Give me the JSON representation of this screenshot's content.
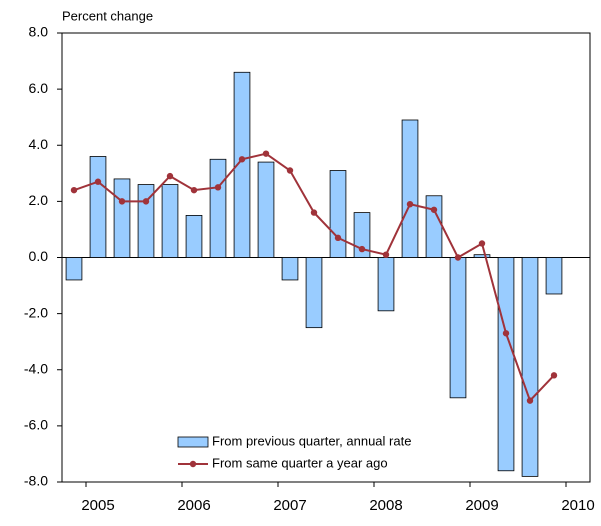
{
  "chart_data": {
    "type": "bar_line",
    "y_label": "Percent change",
    "categories": [
      null,
      "2005",
      null,
      null,
      null,
      "2006",
      null,
      null,
      null,
      "2007",
      null,
      null,
      null,
      "2008",
      null,
      null,
      null,
      "2009",
      null,
      null,
      null,
      "2010"
    ],
    "series": [
      {
        "name": "From previous quarter, annual rate",
        "type": "bar",
        "color": "#99ccff",
        "values": [
          -0.8,
          3.6,
          2.8,
          2.6,
          2.6,
          1.5,
          3.5,
          6.6,
          3.4,
          -0.8,
          -2.5,
          3.1,
          1.6,
          -1.9,
          4.9,
          2.2,
          -5.0,
          0.1,
          -7.6,
          -7.8,
          -1.3,
          null
        ]
      },
      {
        "name": "From same quarter a year ago",
        "type": "line",
        "color": "#a0333a",
        "values": [
          2.4,
          2.7,
          2.0,
          2.0,
          2.9,
          2.4,
          2.5,
          3.5,
          3.7,
          3.1,
          1.6,
          0.7,
          0.3,
          0.1,
          1.9,
          1.7,
          0.0,
          0.5,
          -2.7,
          -5.1,
          -4.2,
          null
        ]
      }
    ],
    "ylim": [
      -8.0,
      8.0
    ],
    "yticks": [
      {
        "value": -8,
        "label": "-8.0"
      },
      {
        "value": -6,
        "label": "-6.0"
      },
      {
        "value": -4,
        "label": "-4.0"
      },
      {
        "value": -2,
        "label": "-2.0"
      },
      {
        "value": 0,
        "label": "0.0"
      },
      {
        "value": 2,
        "label": "2.0"
      },
      {
        "value": 4,
        "label": "4.0"
      },
      {
        "value": 6,
        "label": "6.0"
      },
      {
        "value": 8,
        "label": "8.0"
      }
    ]
  }
}
